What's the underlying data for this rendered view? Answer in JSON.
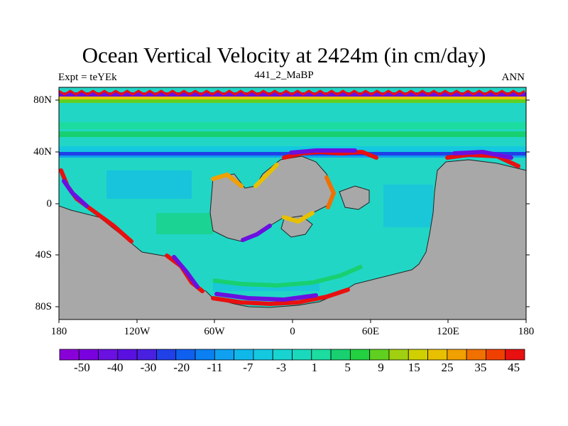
{
  "header": {
    "title": "Ocean Vertical Velocity at 2424m (in cm/day)",
    "left_label": "Expt = teYEk",
    "center_label": "441_2_MaBP",
    "right_label": "ANN"
  },
  "map": {
    "lat_labels": [
      "80N",
      "40N",
      "0",
      "40S",
      "80S"
    ],
    "lon_labels": [
      "180",
      "120W",
      "60W",
      "0",
      "60E",
      "120E",
      "180"
    ],
    "land_color": "#a8a8a8",
    "background_ocean_color": "#22d6c6"
  },
  "colorbar": {
    "colors": [
      "#8a00d8",
      "#7a00e0",
      "#6a10e0",
      "#5a10e0",
      "#4a20e0",
      "#2040e8",
      "#1060f0",
      "#0a80f2",
      "#10a0f0",
      "#10b8ea",
      "#14c8e0",
      "#18d4d0",
      "#1ad8bc",
      "#1cdca0",
      "#18d070",
      "#22d040",
      "#60d020",
      "#a0d010",
      "#d0d000",
      "#e8c000",
      "#f0a000",
      "#f07000",
      "#f04000",
      "#e81010"
    ],
    "tick_labels": [
      "-50",
      "-40",
      "-30",
      "-20",
      "-11",
      "-7",
      "-3",
      "1",
      "5",
      "9",
      "15",
      "25",
      "35",
      "45"
    ]
  }
}
